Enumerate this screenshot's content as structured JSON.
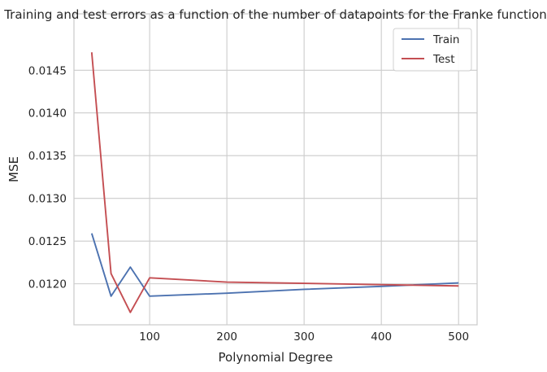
{
  "chart_data": {
    "type": "line",
    "title": "Training and test errors as a function of the number of datapoints for the Franke function",
    "xlabel": "Polynomial Degree",
    "ylabel": "MSE",
    "xlim": [
      2,
      524
    ],
    "ylim": [
      0.01152,
      0.01516
    ],
    "xticks": [
      100,
      200,
      300,
      400,
      500
    ],
    "yticks": [
      0.012,
      0.0125,
      0.013,
      0.0135,
      0.014,
      0.0145
    ],
    "ytick_labels": [
      "0.0120",
      "0.0125",
      "0.0130",
      "0.0135",
      "0.0140",
      "0.0145"
    ],
    "grid": true,
    "legend_position": "top-right",
    "series": [
      {
        "name": "Train",
        "color": "#4c72b0",
        "x": [
          25,
          50,
          75,
          100,
          200,
          300,
          400,
          500
        ],
        "y": [
          0.01259,
          0.011855,
          0.012195,
          0.011855,
          0.01189,
          0.011935,
          0.01197,
          0.01201
        ]
      },
      {
        "name": "Test",
        "color": "#c44e52",
        "x": [
          25,
          50,
          75,
          100,
          200,
          300,
          400,
          500
        ],
        "y": [
          0.01471,
          0.01212,
          0.011665,
          0.01207,
          0.01202,
          0.012005,
          0.01199,
          0.011975
        ]
      }
    ]
  }
}
